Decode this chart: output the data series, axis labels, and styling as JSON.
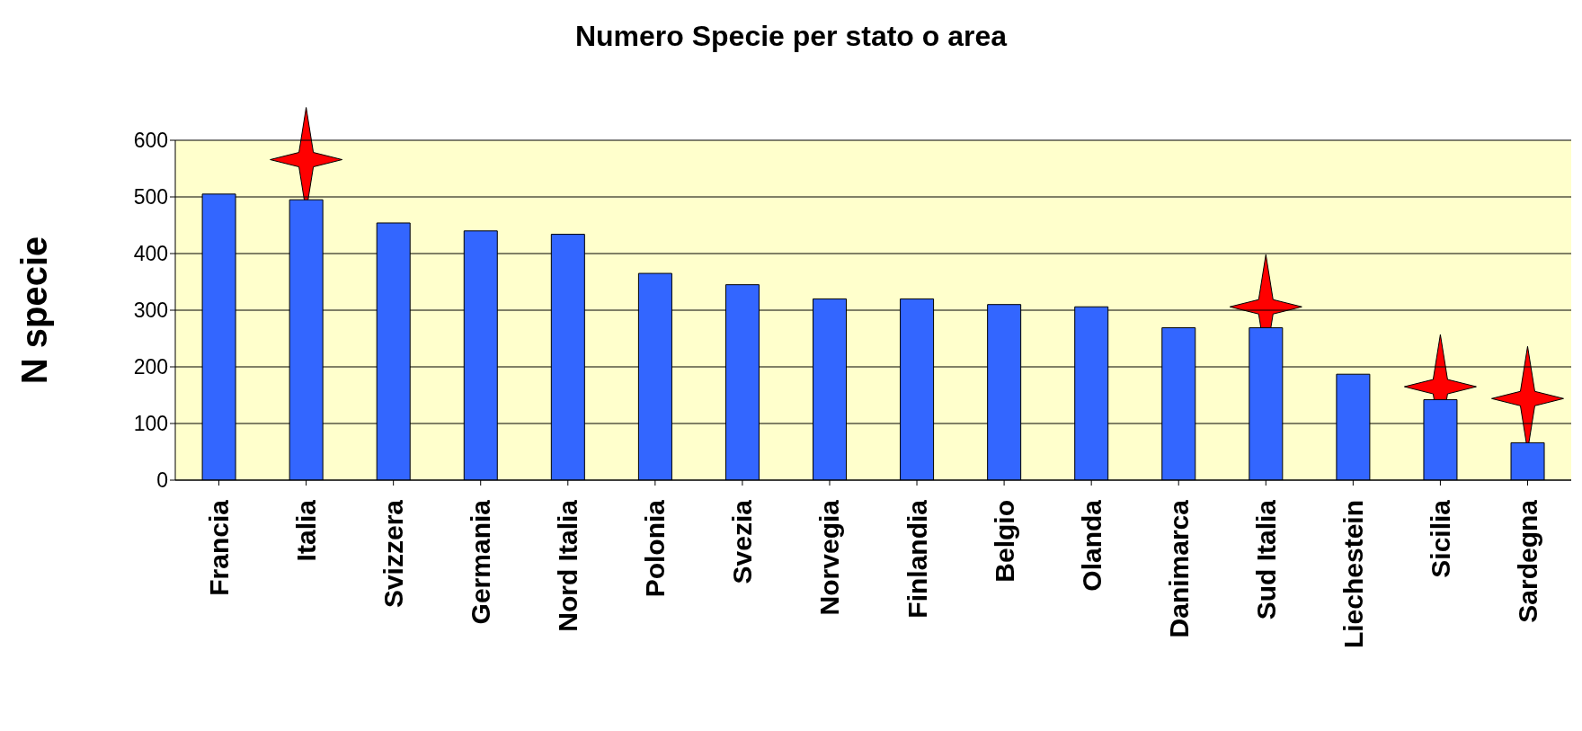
{
  "chart_data": {
    "type": "bar",
    "title": "Numero Specie per stato o area",
    "ylabel": "N specie",
    "categories": [
      "Francia",
      "Italia",
      "Svizzera",
      "Germania",
      "Nord Italia",
      "Polonia",
      "Svezia",
      "Norvegia",
      "Finlandia",
      "Belgio",
      "Olanda",
      "Danimarca",
      "Sud Italia",
      "Liechestein",
      "Sicilia",
      "Sardegna"
    ],
    "values": [
      505,
      495,
      454,
      440,
      434,
      365,
      345,
      320,
      320,
      310,
      306,
      269,
      269,
      187,
      142,
      66
    ],
    "color": "#3366ff",
    "ylim": [
      0,
      600
    ],
    "yticks": [
      0,
      100,
      200,
      300,
      400,
      500,
      600
    ],
    "grid": "y"
  }
}
